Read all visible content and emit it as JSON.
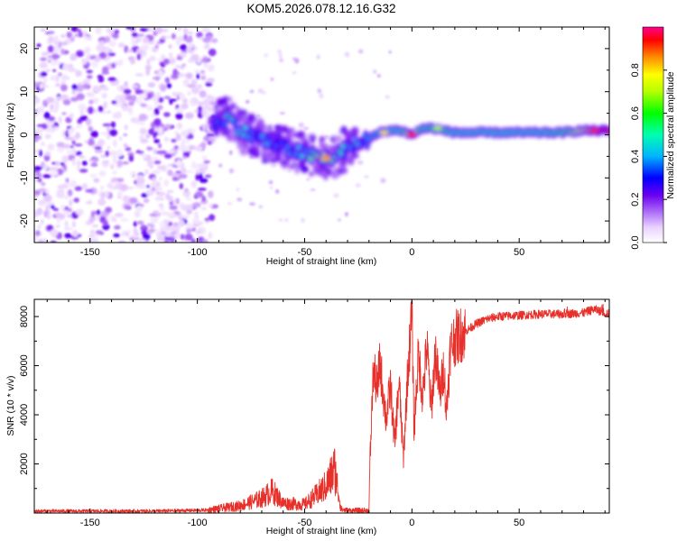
{
  "title": "KOM5.2026.078.12.16.G32",
  "chart_data": [
    {
      "type": "heatmap",
      "xlabel": "Height of straight line (km)",
      "ylabel": "Frequency (Hz)",
      "xlim": [
        -176,
        92
      ],
      "ylim": [
        -25,
        25
      ],
      "xticks": [
        -150,
        -100,
        -50,
        0,
        50
      ],
      "yticks": [
        -20,
        -10,
        0,
        10,
        20
      ],
      "xtick_labels": [
        "-150",
        "-100",
        "-50",
        "0",
        "50"
      ],
      "ytick_labels": [
        "-20",
        "-10",
        "0",
        "10",
        "20"
      ],
      "colorbar": {
        "label": "Normalized spectral amplitude",
        "range": [
          0,
          1
        ],
        "ticks": [
          0.0,
          0.2,
          0.4,
          0.6,
          0.8
        ],
        "tick_labels": [
          "0.0",
          "0.2",
          "0.4",
          "0.6",
          "0.8"
        ]
      },
      "noise_region_x": [
        -176,
        -92
      ],
      "ridge": [
        {
          "x": -90,
          "f": 3,
          "a": 0.35
        },
        {
          "x": -85,
          "f": 4,
          "a": 0.45
        },
        {
          "x": -80,
          "f": 1,
          "a": 0.4
        },
        {
          "x": -75,
          "f": 0,
          "a": 0.4
        },
        {
          "x": -70,
          "f": -1,
          "a": 0.35
        },
        {
          "x": -65,
          "f": -2,
          "a": 0.3
        },
        {
          "x": -60,
          "f": -3,
          "a": 0.3
        },
        {
          "x": -55,
          "f": -3.5,
          "a": 0.35
        },
        {
          "x": -50,
          "f": -4.5,
          "a": 0.4
        },
        {
          "x": -45,
          "f": -5,
          "a": 0.6
        },
        {
          "x": -40,
          "f": -5.5,
          "a": 0.85
        },
        {
          "x": -35,
          "f": -5,
          "a": 0.5
        },
        {
          "x": -30,
          "f": -3,
          "a": 0.35
        },
        {
          "x": -25,
          "f": -2,
          "a": 0.4
        },
        {
          "x": -20,
          "f": -1,
          "a": 0.4
        },
        {
          "x": -15,
          "f": 0.5,
          "a": 0.45
        },
        {
          "x": -10,
          "f": 1,
          "a": 0.5
        },
        {
          "x": -5,
          "f": 1,
          "a": 0.5
        },
        {
          "x": 0,
          "f": 0,
          "a": 0.95
        },
        {
          "x": 5,
          "f": 1.5,
          "a": 0.5
        },
        {
          "x": 10,
          "f": 1.5,
          "a": 0.55
        },
        {
          "x": 15,
          "f": 1,
          "a": 0.55
        },
        {
          "x": 20,
          "f": 0.5,
          "a": 0.5
        },
        {
          "x": 30,
          "f": 0.5,
          "a": 0.5
        },
        {
          "x": 40,
          "f": 0.5,
          "a": 0.5
        },
        {
          "x": 50,
          "f": 0.5,
          "a": 0.5
        },
        {
          "x": 60,
          "f": 0.5,
          "a": 0.5
        },
        {
          "x": 70,
          "f": 0.5,
          "a": 0.55
        },
        {
          "x": 75,
          "f": 0.8,
          "a": 0.7
        },
        {
          "x": 80,
          "f": 1,
          "a": 0.8
        },
        {
          "x": 85,
          "f": 1,
          "a": 0.9
        },
        {
          "x": 90,
          "f": 1,
          "a": 0.95
        }
      ]
    },
    {
      "type": "line",
      "xlabel": "Height of straight line (km)",
      "ylabel": "SNR (10 * v/v)",
      "xlim": [
        -176,
        92
      ],
      "ylim": [
        0,
        8700
      ],
      "xticks": [
        -150,
        -100,
        -50,
        0,
        50
      ],
      "yticks": [
        2000,
        4000,
        6000,
        8000
      ],
      "xtick_labels": [
        "-150",
        "-100",
        "-50",
        "0",
        "50"
      ],
      "ytick_labels": [
        "2000",
        "4000",
        "6000",
        "8000"
      ],
      "series": [
        {
          "name": "SNR",
          "color": "#e8302a",
          "x": [
            -176,
            -120,
            -95,
            -80,
            -70,
            -65,
            -60,
            -50,
            -45,
            -40,
            -36,
            -33,
            -30,
            -20,
            -19.5,
            -18,
            -16,
            -15,
            -12,
            -10,
            -8,
            -6,
            -4,
            -2,
            0,
            1,
            3,
            5,
            7,
            9,
            11,
            13,
            15,
            16,
            18,
            20,
            25,
            30,
            35,
            40,
            50,
            60,
            70,
            80,
            85,
            92
          ],
          "y": [
            80,
            80,
            120,
            300,
            600,
            900,
            400,
            350,
            700,
            1100,
            1800,
            150,
            100,
            100,
            2200,
            5800,
            5000,
            6200,
            3800,
            5200,
            2800,
            5400,
            2200,
            5600,
            8200,
            3400,
            6400,
            4800,
            6800,
            4200,
            6600,
            4800,
            6000,
            4000,
            6800,
            7100,
            7400,
            7700,
            7900,
            8000,
            8050,
            8100,
            8100,
            8150,
            8300,
            8100
          ]
        }
      ]
    }
  ]
}
